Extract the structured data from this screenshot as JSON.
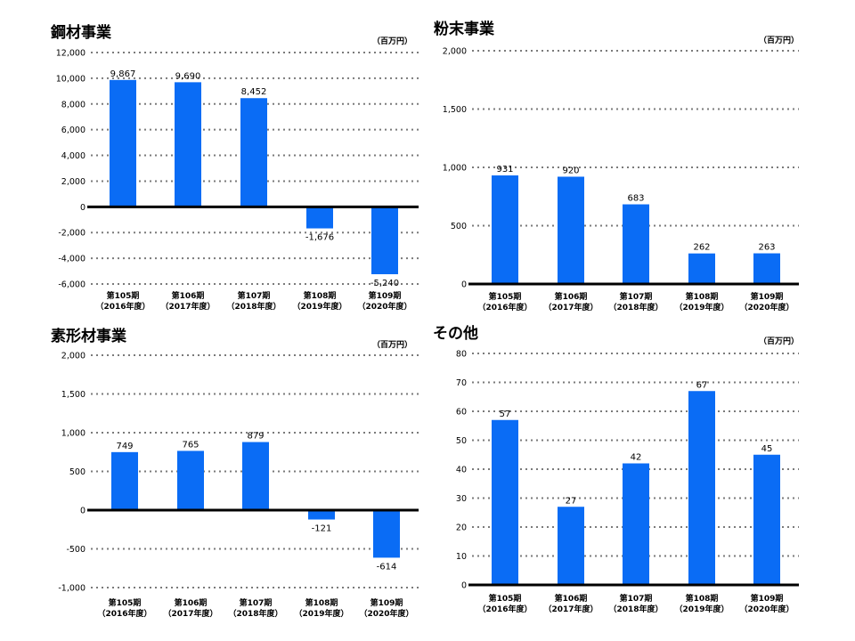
{
  "chart_data": [
    {
      "type": "bar",
      "title": "鋼材事業",
      "unit": "（百万円）",
      "categories": [
        [
          "第105期",
          "（2016年度）"
        ],
        [
          "第106期",
          "（2017年度）"
        ],
        [
          "第107期",
          "（2018年度）"
        ],
        [
          "第108期",
          "（2019年度）"
        ],
        [
          "第109期",
          "（2020年度）"
        ]
      ],
      "values": [
        9867,
        9690,
        8452,
        -1676,
        -5240
      ],
      "value_labels": [
        "9,867",
        "9,690",
        "8,452",
        "-1,676",
        "-5,240"
      ],
      "ylim": [
        -6000,
        12000
      ],
      "yticks": [
        12000,
        10000,
        8000,
        6000,
        4000,
        2000,
        0,
        -2000,
        -4000,
        -6000
      ],
      "ytick_labels": [
        "12,000",
        "10,000",
        "8,000",
        "6,000",
        "4,000",
        "2,000",
        "0",
        "-2,000",
        "-4,000",
        "-6,000"
      ],
      "grid": "dotted",
      "bar_color": "#0a6cf5"
    },
    {
      "type": "bar",
      "title": "粉末事業",
      "unit": "（百万円）",
      "categories": [
        [
          "第105期",
          "（2016年度）"
        ],
        [
          "第106期",
          "（2017年度）"
        ],
        [
          "第107期",
          "（2018年度）"
        ],
        [
          "第108期",
          "（2019年度）"
        ],
        [
          "第109期",
          "（2020年度）"
        ]
      ],
      "values": [
        931,
        920,
        683,
        262,
        263
      ],
      "value_labels": [
        "931",
        "920",
        "683",
        "262",
        "263"
      ],
      "ylim": [
        0,
        2000
      ],
      "yticks": [
        2000,
        1500,
        1000,
        500,
        0
      ],
      "ytick_labels": [
        "2,000",
        "1,500",
        "1,000",
        "500",
        "0"
      ],
      "grid": "dotted",
      "bar_color": "#0a6cf5"
    },
    {
      "type": "bar",
      "title": "素形材事業",
      "unit": "（百万円）",
      "categories": [
        [
          "第105期",
          "（2016年度）"
        ],
        [
          "第106期",
          "（2017年度）"
        ],
        [
          "第107期",
          "（2018年度）"
        ],
        [
          "第108期",
          "（2019年度）"
        ],
        [
          "第109期",
          "（2020年度）"
        ]
      ],
      "values": [
        749,
        765,
        879,
        -121,
        -614
      ],
      "value_labels": [
        "749",
        "765",
        "879",
        "-121",
        "-614"
      ],
      "ylim": [
        -1000,
        2000
      ],
      "yticks": [
        2000,
        1500,
        1000,
        500,
        0,
        -500,
        -1000
      ],
      "ytick_labels": [
        "2,000",
        "1,500",
        "1,000",
        "500",
        "0",
        "-500",
        "-1,000"
      ],
      "grid": "dotted",
      "bar_color": "#0a6cf5"
    },
    {
      "type": "bar",
      "title": "その他",
      "unit": "（百万円）",
      "categories": [
        [
          "第105期",
          "（2016年度）"
        ],
        [
          "第106期",
          "（2017年度）"
        ],
        [
          "第107期",
          "（2018年度）"
        ],
        [
          "第108期",
          "（2019年度）"
        ],
        [
          "第109期",
          "（2020年度）"
        ]
      ],
      "values": [
        57,
        27,
        42,
        67,
        45
      ],
      "value_labels": [
        "57",
        "27",
        "42",
        "67",
        "45"
      ],
      "ylim": [
        0,
        80
      ],
      "yticks": [
        80,
        70,
        60,
        50,
        40,
        30,
        20,
        10,
        0
      ],
      "ytick_labels": [
        "80",
        "70",
        "60",
        "50",
        "40",
        "30",
        "20",
        "10",
        "0"
      ],
      "grid": "dotted",
      "bar_color": "#0a6cf5"
    }
  ]
}
